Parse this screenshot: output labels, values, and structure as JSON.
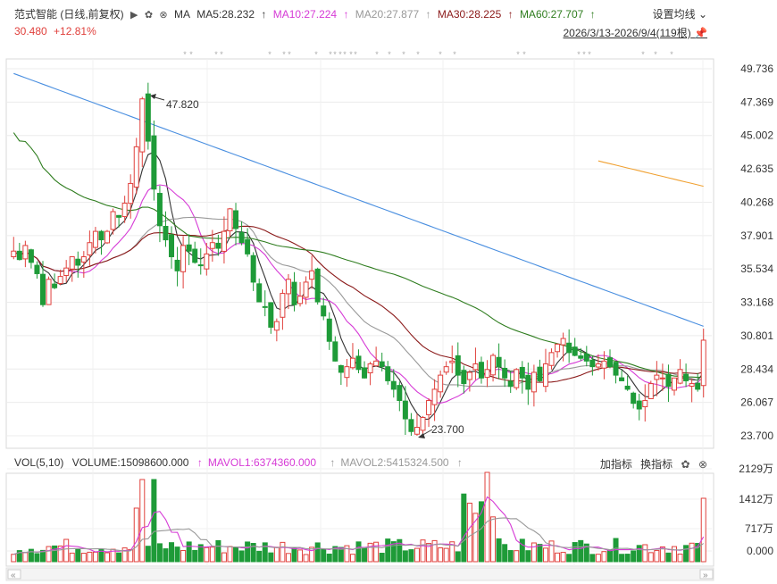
{
  "header": {
    "title": "范式智能 (日线,前复权)",
    "ma_label": "MA",
    "ma": [
      {
        "label": "MA5:28.232",
        "color": "#333333"
      },
      {
        "label": "MA10:27.224",
        "color": "#d63bd6"
      },
      {
        "label": "MA20:27.877",
        "color": "#999999"
      },
      {
        "label": "MA30:28.225",
        "color": "#8b1a1a"
      },
      {
        "label": "MA60:27.707",
        "color": "#2f7d1f"
      }
    ],
    "price": "30.480",
    "change": "+12.81%",
    "settings_label": "设置均线",
    "range_label": "2026/3/13-2026/9/4(119根)"
  },
  "price_axis": [
    "49.736",
    "47.369",
    "45.002",
    "42.635",
    "40.268",
    "37.901",
    "35.534",
    "33.168",
    "30.801",
    "28.434",
    "26.067",
    "23.700"
  ],
  "annotations": {
    "high": "47.820",
    "low": "23.700"
  },
  "volume": {
    "label": "VOL(5,10)",
    "volume_label": "VOLUME:15098600.000",
    "mavol1_label": "MAVOL1:6374360.000",
    "mavol2_label": "MAVOL2:5415324.500",
    "axis": [
      "2129万",
      "1412万",
      "717万",
      "0.000"
    ],
    "tools": {
      "add_indicator": "加指标",
      "switch_indicator": "换指标"
    }
  },
  "x_axis": [
    "04",
    "05",
    "06",
    "07",
    "08",
    "09"
  ],
  "colors": {
    "up": "#e0403c",
    "down": "#1e9b38",
    "ma5": "#333333",
    "ma10": "#d63bd6",
    "ma20": "#999999",
    "ma30": "#8b1a1a",
    "ma60": "#2f7d1f",
    "ma120": "#4a8fe0",
    "ma250": "#f0a030"
  },
  "chart_data": {
    "type": "candlestick",
    "x_labels": [
      "04",
      "05",
      "06",
      "07",
      "08",
      "09"
    ],
    "ylim": [
      23.7,
      49.736
    ],
    "high": 47.82,
    "low": 23.7,
    "last_close": 30.48
  }
}
